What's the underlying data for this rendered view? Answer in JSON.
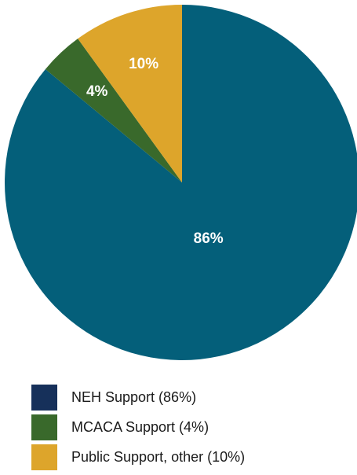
{
  "chart_data": {
    "type": "pie",
    "title": "",
    "start": "12 o'clock",
    "direction": "clockwise",
    "slices": [
      {
        "name": "NEH Support",
        "value": 86,
        "label": "86%",
        "color": "#045f7a"
      },
      {
        "name": "MCACA Support",
        "value": 4,
        "label": "4%",
        "color": "#39692b"
      },
      {
        "name": "Public Support, other",
        "value": 10,
        "label": "10%",
        "color": "#dda52b"
      }
    ],
    "legend": {
      "placement": "bottom",
      "items": [
        {
          "label": "NEH Support (86%)",
          "color": "#16305a"
        },
        {
          "label": "MCACA Support (4%)",
          "color": "#39692b"
        },
        {
          "label": "Public Support, other (10%)",
          "color": "#dda52b"
        }
      ]
    }
  }
}
